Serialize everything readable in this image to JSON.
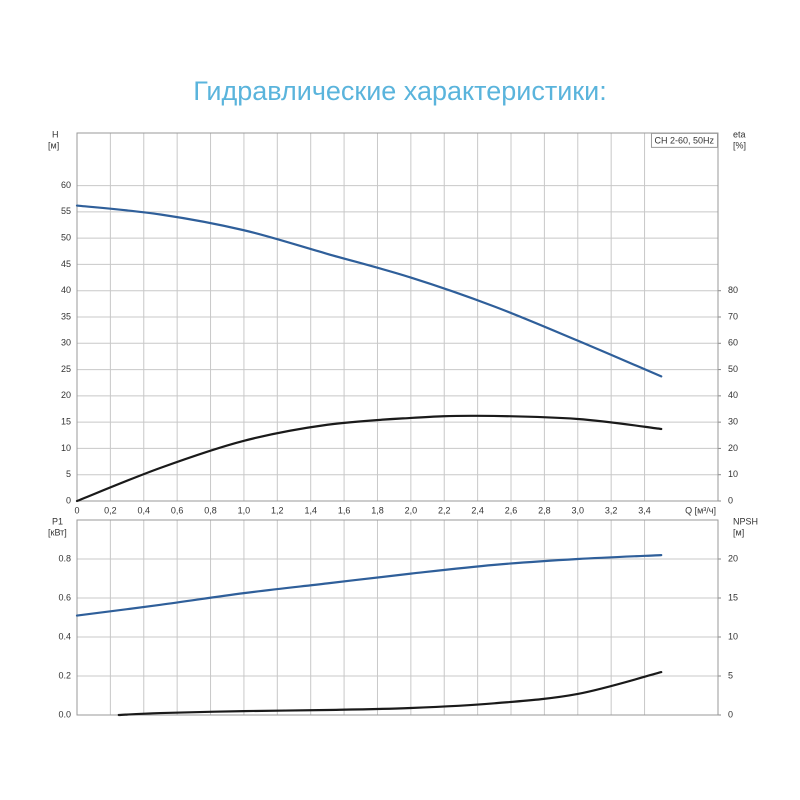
{
  "chart_data": [
    {
      "type": "line",
      "title": "Гидравлические характеристики:",
      "annotation": "CH 2-60, 50Hz",
      "y_label": "H",
      "y_unit": "[м]",
      "y2_label": "eta",
      "y2_unit": "[%]",
      "x_label": "Q [м³/ч]",
      "xlim": [
        0,
        3.84
      ],
      "xticks": [
        0,
        {
          "value": 0.2,
          "label": "0,2"
        },
        {
          "value": 0.4,
          "label": "0,4"
        },
        {
          "value": 0.6,
          "label": "0,6"
        },
        {
          "value": 0.8,
          "label": "0,8"
        },
        {
          "value": 1.0,
          "label": "1,0"
        },
        {
          "value": 1.2,
          "label": "1,2"
        },
        {
          "value": 1.4,
          "label": "1,4"
        },
        {
          "value": 1.6,
          "label": "1,6"
        },
        {
          "value": 1.8,
          "label": "1,8"
        },
        {
          "value": 2.0,
          "label": "2,0"
        },
        {
          "value": 2.2,
          "label": "2,2"
        },
        {
          "value": 2.4,
          "label": "2,4"
        },
        {
          "value": 2.6,
          "label": "2,6"
        },
        {
          "value": 2.8,
          "label": "2,8"
        },
        {
          "value": 3.0,
          "label": "3,0"
        },
        {
          "value": 3.2,
          "label": "3,2"
        },
        {
          "value": 3.4,
          "label": "3,4"
        }
      ],
      "ylim": [
        0,
        70
      ],
      "yticks": [
        0,
        5,
        10,
        15,
        20,
        25,
        30,
        35,
        40,
        45,
        50,
        55,
        60
      ],
      "y2lim": [
        0,
        140
      ],
      "y2ticks": [
        0,
        10,
        20,
        30,
        40,
        50,
        60,
        70,
        80
      ],
      "grid": true,
      "series": [
        {
          "color": "#2f5f9a",
          "x": [
            0,
            0.5,
            1.0,
            1.5,
            2.0,
            2.5,
            3.0,
            3.5
          ],
          "values": [
            56.2,
            54.5,
            51.5,
            47,
            42.5,
            37,
            30.5,
            23.7
          ]
        },
        {
          "color": "#1a1a1a",
          "axis": "y2",
          "x": [
            0,
            0.5,
            1.0,
            1.5,
            2.0,
            2.4,
            3.0,
            3.5
          ],
          "values": [
            0,
            12.6,
            22.9,
            29,
            31.6,
            32.4,
            31.2,
            27.4
          ]
        }
      ]
    },
    {
      "type": "line",
      "y_label": "P1",
      "y_unit": "[кВт]",
      "y2_label": "NPSH",
      "y2_unit": "[м]",
      "ylim": [
        0,
        1.0
      ],
      "yticks": [
        {
          "value": 0,
          "label": "0.0"
        },
        0.2,
        0.4,
        0.6,
        0.8
      ],
      "y2lim": [
        0,
        25
      ],
      "y2ticks": [
        0,
        5,
        10,
        15,
        20
      ],
      "grid": true,
      "series": [
        {
          "color": "#2f5f9a",
          "x": [
            0,
            0.5,
            1.0,
            1.5,
            2.0,
            2.5,
            3.0,
            3.5
          ],
          "values": [
            0.51,
            0.565,
            0.625,
            0.675,
            0.725,
            0.77,
            0.8,
            0.82
          ]
        },
        {
          "color": "#1a1a1a",
          "axis": "y2",
          "x": [
            0.25,
            0.5,
            1.0,
            1.5,
            2.0,
            2.5,
            3.0,
            3.5
          ],
          "values": [
            0,
            0.25,
            0.5,
            0.64,
            0.9,
            1.5,
            2.7,
            5.5
          ]
        }
      ]
    }
  ]
}
